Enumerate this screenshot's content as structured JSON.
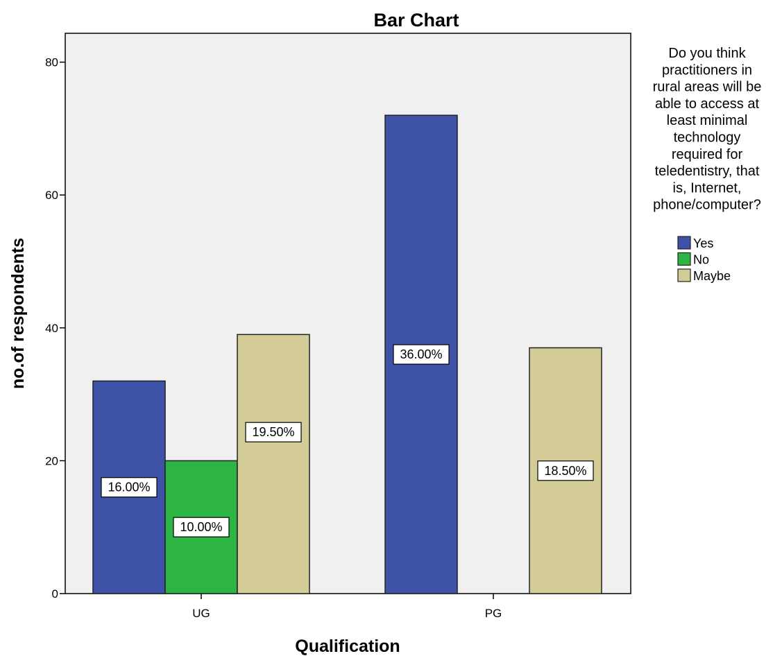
{
  "chart_data": {
    "type": "bar",
    "title": "Bar Chart",
    "xlabel": "Qualification",
    "ylabel": "no.of respondents",
    "categories": [
      "UG",
      "PG"
    ],
    "ylim": [
      0,
      84
    ],
    "yticks": [
      "0",
      "20",
      "40",
      "60",
      "80"
    ],
    "grid": false,
    "legend_position": "right",
    "legend_title": [
      "Do you think",
      "practitioners in",
      "rural areas will be",
      "able to access at",
      "least minimal",
      "technology",
      "required for",
      "teledentistry, that",
      "is, Internet,",
      "phone/computer?"
    ],
    "series": [
      {
        "name": "Yes",
        "color": "#3e52a8",
        "values": [
          32,
          72
        ],
        "labels": [
          "16.00%",
          "36.00%"
        ]
      },
      {
        "name": "No",
        "color": "#2db543",
        "values": [
          20,
          0
        ],
        "labels": [
          "10.00%",
          ""
        ]
      },
      {
        "name": "Maybe",
        "color": "#d4cc96",
        "values": [
          39,
          37
        ],
        "labels": [
          "19.50%",
          "18.50%"
        ]
      }
    ]
  }
}
